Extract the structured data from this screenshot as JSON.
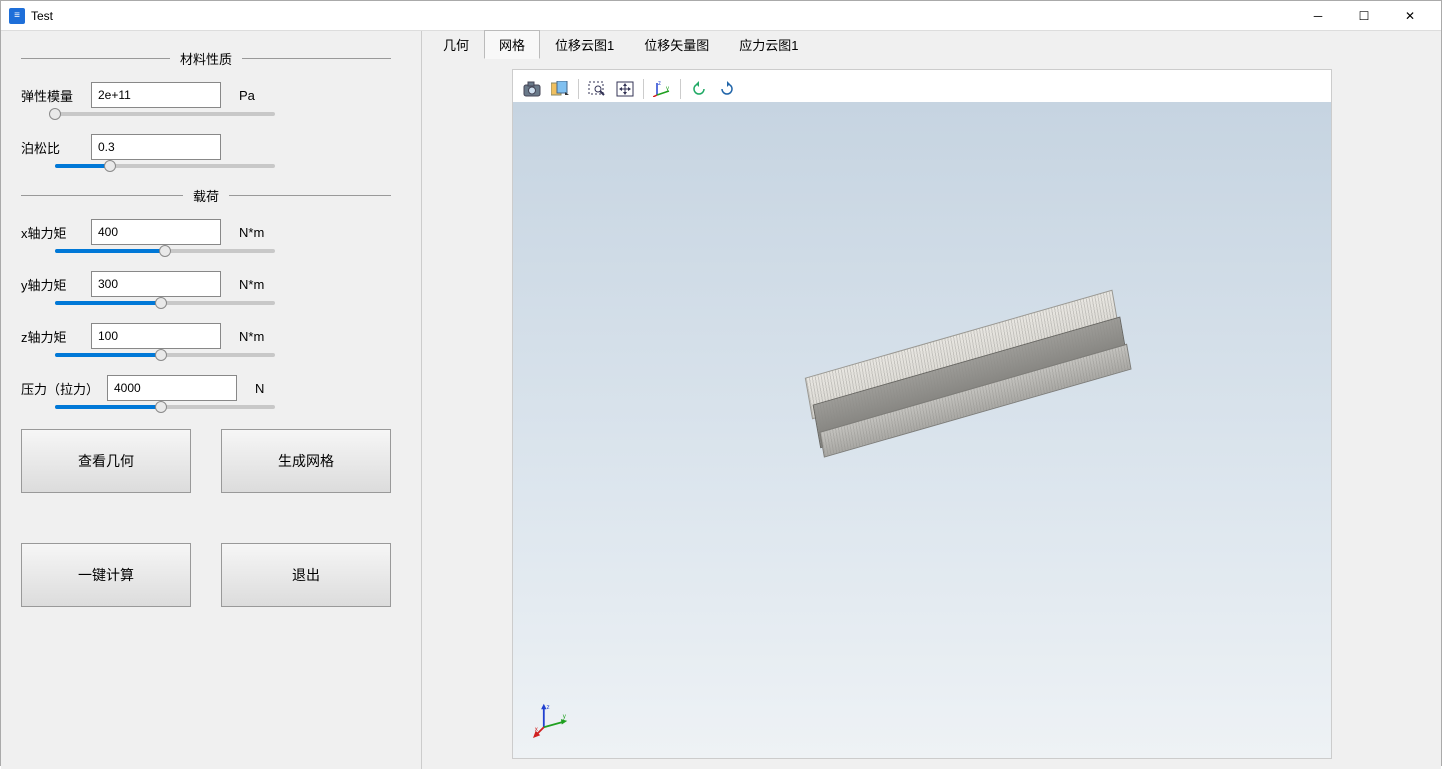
{
  "window": {
    "title": "Test"
  },
  "sections": {
    "material": {
      "heading": "材料性质"
    },
    "load": {
      "heading": "载荷"
    }
  },
  "fields": {
    "elastic_modulus": {
      "label": "弹性模量",
      "value": "2e+11",
      "unit": "Pa",
      "slider_pct": 0
    },
    "poisson_ratio": {
      "label": "泊松比",
      "value": "0.3",
      "unit": "",
      "slider_pct": 25
    },
    "moment_x": {
      "label": "x轴力矩",
      "value": "400",
      "unit": "N*m",
      "slider_pct": 50
    },
    "moment_y": {
      "label": "y轴力矩",
      "value": "300",
      "unit": "N*m",
      "slider_pct": 48
    },
    "moment_z": {
      "label": "z轴力矩",
      "value": "100",
      "unit": "N*m",
      "slider_pct": 48
    },
    "pressure": {
      "label": "压力（拉力）",
      "value": "4000",
      "unit": "N",
      "slider_pct": 48
    }
  },
  "buttons": {
    "view_geometry": "查看几何",
    "generate_mesh": "生成网格",
    "one_click_calc": "一键计算",
    "exit": "退出"
  },
  "tabs": [
    {
      "id": "geometry",
      "label": "几何",
      "active": false
    },
    {
      "id": "mesh",
      "label": "网格",
      "active": true
    },
    {
      "id": "disp_contour",
      "label": "位移云图1",
      "active": false
    },
    {
      "id": "disp_vector",
      "label": "位移矢量图",
      "active": false
    },
    {
      "id": "stress",
      "label": "应力云图1",
      "active": false
    }
  ],
  "toolbar_icons": [
    "camera-icon",
    "snapshot-options-icon",
    "sep",
    "rubber-band-zoom-icon",
    "fit-view-icon",
    "sep",
    "axes-icon",
    "sep",
    "rotate-ccw-icon",
    "rotate-cw-icon"
  ],
  "colors": {
    "viewport_top": "#c6d4e1",
    "viewport_bottom": "#eef2f5",
    "slider_fill": "#0078d7",
    "mesh_light": "#e8e6e1",
    "mesh_mid": "#9d9c98",
    "mesh_dark": "#7c7b77",
    "triad_x": "#d02020",
    "triad_y": "#20a020",
    "triad_z": "#2040d0"
  }
}
